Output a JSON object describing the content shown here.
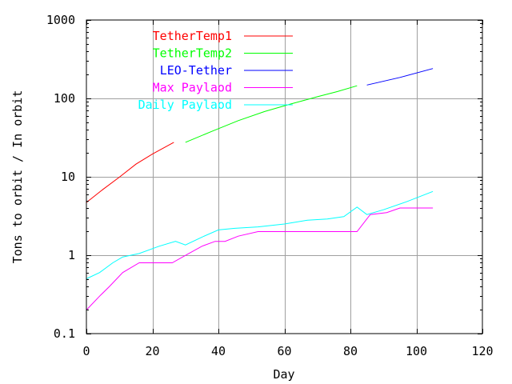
{
  "chart_data": {
    "type": "line",
    "xlabel": "Day",
    "ylabel": "Tons to orbit / In orbit",
    "xlim": [
      0,
      120
    ],
    "ylim": [
      0.1,
      1000
    ],
    "yscale": "log",
    "grid": true,
    "legend_position": "top-left",
    "x_ticks": [
      0,
      20,
      40,
      60,
      80,
      100,
      120
    ],
    "x_tick_labels": [
      "0",
      "20",
      "40",
      "60",
      "80",
      "100",
      "120"
    ],
    "y_ticks": [
      0.1,
      1,
      10,
      100,
      1000
    ],
    "y_tick_labels": [
      "0.1",
      "1",
      "10",
      "100",
      "1000"
    ],
    "series": [
      {
        "name": "TetherTemp1",
        "color": "#ff0000",
        "points": [
          [
            0,
            4.7
          ],
          [
            5,
            6.9
          ],
          [
            10,
            9.9
          ],
          [
            15,
            14.5
          ],
          [
            20,
            19.5
          ],
          [
            26.5,
            27.5
          ]
        ]
      },
      {
        "name": "TetherTemp2",
        "color": "#00ff00",
        "points": [
          [
            30,
            27.5
          ],
          [
            38,
            38
          ],
          [
            46,
            52
          ],
          [
            54,
            68
          ],
          [
            62,
            85
          ],
          [
            70,
            105
          ],
          [
            76,
            122
          ],
          [
            82,
            145
          ]
        ]
      },
      {
        "name": "LEO-Tether",
        "color": "#0000ff",
        "points": [
          [
            85,
            148
          ],
          [
            95,
            185
          ],
          [
            105,
            240
          ]
        ]
      },
      {
        "name": "Max Paylaod",
        "color": "#ff00ff",
        "points": [
          [
            0,
            0.2
          ],
          [
            4,
            0.3
          ],
          [
            7,
            0.4
          ],
          [
            11,
            0.6
          ],
          [
            16,
            0.8
          ],
          [
            26,
            0.8
          ],
          [
            31,
            1.05
          ],
          [
            35,
            1.3
          ],
          [
            39,
            1.5
          ],
          [
            42,
            1.5
          ],
          [
            46,
            1.75
          ],
          [
            52,
            2.0
          ],
          [
            82,
            2.0
          ],
          [
            86,
            3.3
          ],
          [
            91,
            3.5
          ],
          [
            95,
            4.0
          ],
          [
            105,
            4.0
          ]
        ]
      },
      {
        "name": "Daily Paylaod",
        "color": "#00ffff",
        "points": [
          [
            0,
            0.5
          ],
          [
            4,
            0.6
          ],
          [
            8,
            0.8
          ],
          [
            11,
            0.95
          ],
          [
            16,
            1.05
          ],
          [
            22,
            1.3
          ],
          [
            27,
            1.5
          ],
          [
            30,
            1.35
          ],
          [
            35,
            1.7
          ],
          [
            40,
            2.1
          ],
          [
            45,
            2.2
          ],
          [
            52,
            2.3
          ],
          [
            60,
            2.5
          ],
          [
            67,
            2.8
          ],
          [
            73,
            2.9
          ],
          [
            78,
            3.1
          ],
          [
            82,
            4.1
          ],
          [
            85,
            3.3
          ],
          [
            90,
            3.8
          ],
          [
            97,
            4.8
          ],
          [
            105,
            6.5
          ]
        ]
      }
    ]
  }
}
